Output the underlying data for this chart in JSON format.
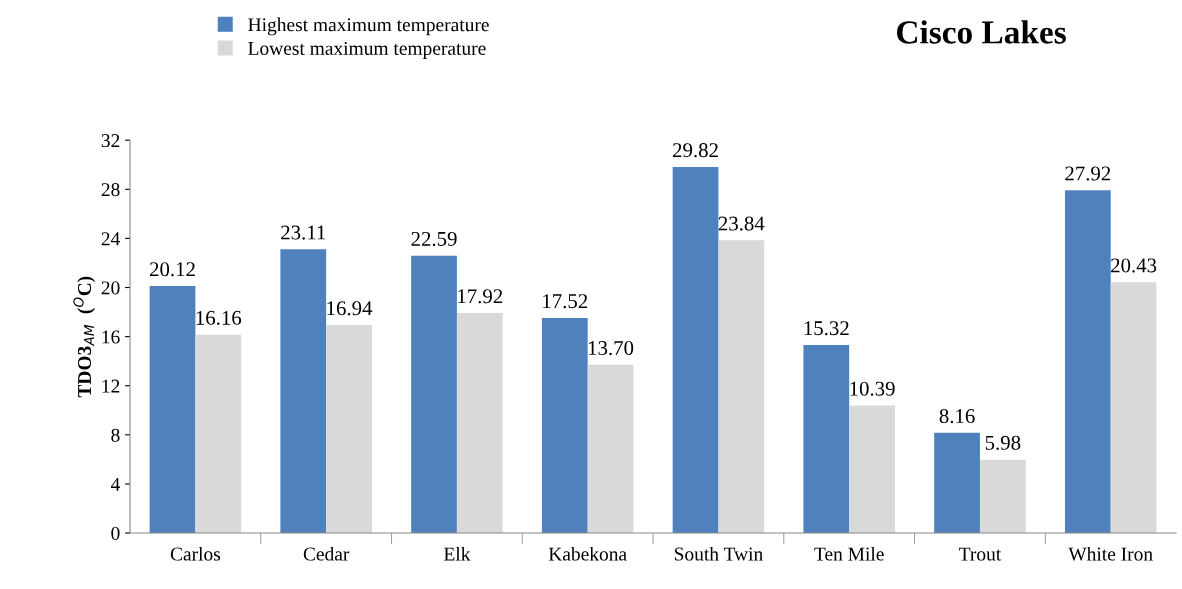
{
  "chart_data": {
    "type": "bar",
    "title": "Cisco Lakes",
    "ylabel": "TDO3$_{AM}$  ($^{O}$C)",
    "categories": [
      "Carlos",
      "Cedar",
      "Elk",
      "Kabekona",
      "South Twin",
      "Ten Mile",
      "Trout",
      "White Iron"
    ],
    "series": [
      {
        "name": "Highest maximum temperature",
        "color": "#4f81bd",
        "values": [
          20.12,
          23.11,
          22.59,
          17.52,
          29.82,
          15.32,
          8.16,
          27.92
        ],
        "value_labels": [
          "20.12",
          "23.11",
          "22.59",
          "17.52",
          "29.82",
          "15.32",
          "8.16",
          "27.92"
        ]
      },
      {
        "name": "Lowest maximum temperature",
        "color": "#d9d9d9",
        "values": [
          16.16,
          16.94,
          17.92,
          13.7,
          23.84,
          10.39,
          5.98,
          20.43
        ],
        "value_labels": [
          "16.16",
          "16.94",
          "17.92",
          "13.70",
          "23.84",
          "10.39",
          "5.98",
          "20.43"
        ]
      }
    ],
    "ylim": [
      0,
      32
    ],
    "yticks": [
      0,
      4,
      8,
      12,
      16,
      20,
      24,
      28,
      32
    ],
    "grid": false,
    "legend": "top left"
  }
}
